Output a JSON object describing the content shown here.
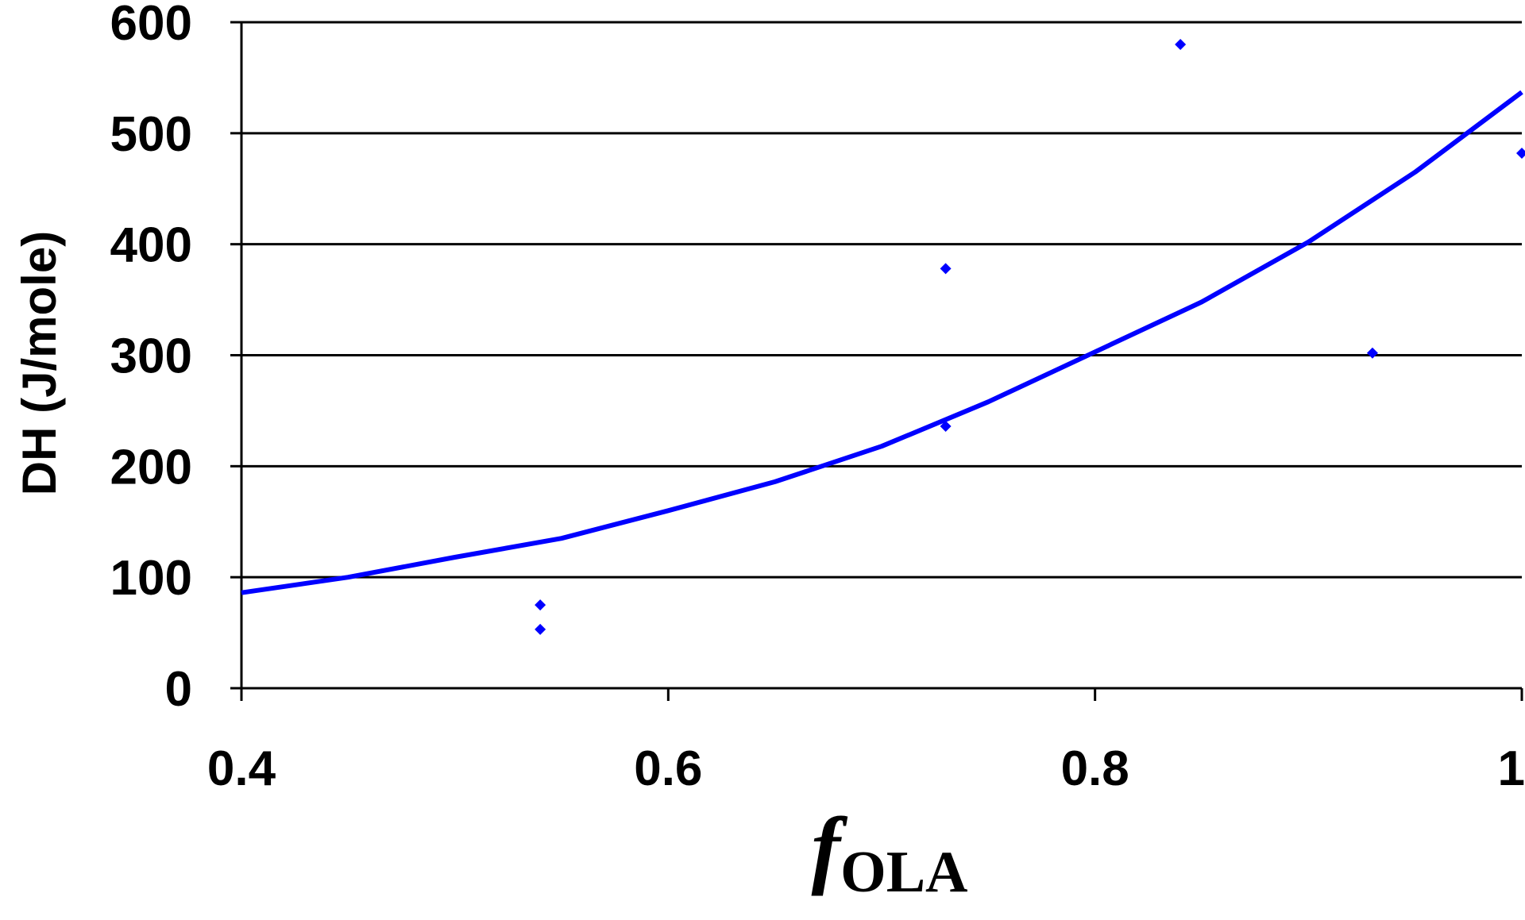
{
  "chart_data": {
    "type": "scatter",
    "title": "",
    "xlabel": "f",
    "xlabel_subscript": "OLA",
    "ylabel": "DH (J/mole)",
    "xlim": [
      0.4,
      1.0
    ],
    "ylim": [
      0,
      600
    ],
    "x_ticks": [
      "0.4",
      "0.6",
      "0.8",
      "1"
    ],
    "y_ticks": [
      "0",
      "100",
      "200",
      "300",
      "400",
      "500",
      "600"
    ],
    "grid": "horizontal",
    "legend": "none",
    "color": "#0000ff",
    "series": [
      {
        "type": "scatter",
        "points": [
          [
            0.54,
            75
          ],
          [
            0.54,
            53
          ],
          [
            0.73,
            378
          ],
          [
            0.73,
            236
          ],
          [
            0.84,
            580
          ],
          [
            0.93,
            302
          ],
          [
            1.0,
            482
          ]
        ]
      },
      {
        "type": "trendline",
        "points": [
          [
            0.4,
            86
          ],
          [
            0.45,
            100
          ],
          [
            0.5,
            118
          ],
          [
            0.55,
            135
          ],
          [
            0.6,
            160
          ],
          [
            0.65,
            186
          ],
          [
            0.7,
            218
          ],
          [
            0.75,
            258
          ],
          [
            0.8,
            303
          ],
          [
            0.85,
            348
          ],
          [
            0.9,
            402
          ],
          [
            0.95,
            465
          ],
          [
            1.0,
            537
          ]
        ]
      }
    ]
  }
}
